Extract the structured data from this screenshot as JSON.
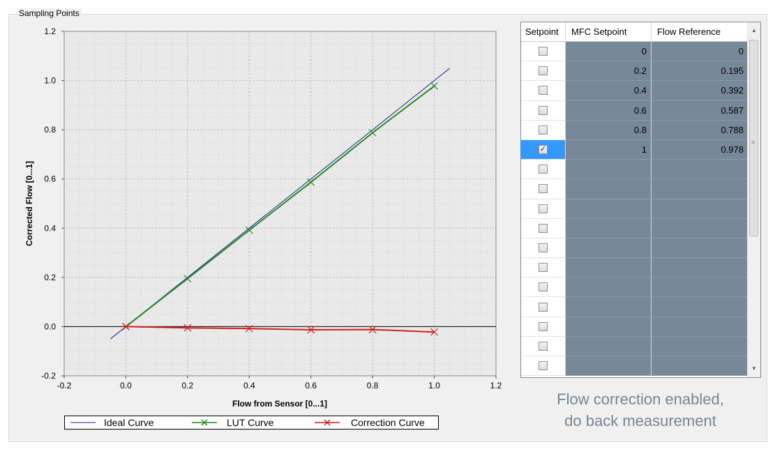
{
  "group": {
    "title": "Sampling Points"
  },
  "chart_data": {
    "type": "line",
    "xlabel": "Flow from Sensor [0...1]",
    "ylabel": "Corrected Flow [0...1]",
    "xlim": [
      -0.2,
      1.2
    ],
    "ylim": [
      -0.2,
      1.2
    ],
    "xticks": [
      "-0.2",
      "0.0",
      "0.2",
      "0.4",
      "0.6",
      "0.8",
      "1.0",
      "1.2"
    ],
    "yticks": [
      "-0.2",
      "0.0",
      "0.2",
      "0.4",
      "0.6",
      "0.8",
      "1.0",
      "1.2"
    ],
    "grid": true,
    "legend_position": "bottom",
    "series": [
      {
        "name": "Ideal Curve",
        "color": "#1c1c8c",
        "marker": "none",
        "x": [
          -0.05,
          1.05
        ],
        "y": [
          -0.05,
          1.05
        ]
      },
      {
        "name": "LUT Curve",
        "color": "#1e8c1e",
        "marker": "x",
        "x": [
          0,
          0.2,
          0.4,
          0.6,
          0.8,
          1.0
        ],
        "y": [
          0,
          0.195,
          0.392,
          0.587,
          0.788,
          0.978
        ]
      },
      {
        "name": "Correction Curve",
        "color": "#d21e1e",
        "marker": "x",
        "x": [
          0,
          0.2,
          0.4,
          0.6,
          0.8,
          1.0
        ],
        "y": [
          0,
          -0.005,
          -0.008,
          -0.013,
          -0.012,
          -0.022
        ]
      }
    ]
  },
  "table": {
    "headers": [
      "Setpoint",
      "MFC Setpoint",
      "Flow Reference"
    ],
    "rows": [
      {
        "checked": false,
        "mfc": "0",
        "ref": "0"
      },
      {
        "checked": false,
        "mfc": "0.2",
        "ref": "0.195"
      },
      {
        "checked": false,
        "mfc": "0.4",
        "ref": "0.392"
      },
      {
        "checked": false,
        "mfc": "0.6",
        "ref": "0.587"
      },
      {
        "checked": false,
        "mfc": "0.8",
        "ref": "0.788"
      },
      {
        "checked": true,
        "mfc": "1",
        "ref": "0.978"
      },
      {
        "checked": false,
        "mfc": "",
        "ref": ""
      },
      {
        "checked": false,
        "mfc": "",
        "ref": ""
      },
      {
        "checked": false,
        "mfc": "",
        "ref": ""
      },
      {
        "checked": false,
        "mfc": "",
        "ref": ""
      },
      {
        "checked": false,
        "mfc": "",
        "ref": ""
      },
      {
        "checked": false,
        "mfc": "",
        "ref": ""
      },
      {
        "checked": false,
        "mfc": "",
        "ref": ""
      },
      {
        "checked": false,
        "mfc": "",
        "ref": ""
      },
      {
        "checked": false,
        "mfc": "",
        "ref": ""
      },
      {
        "checked": false,
        "mfc": "",
        "ref": ""
      },
      {
        "checked": false,
        "mfc": "",
        "ref": ""
      }
    ],
    "selected_row": 5
  },
  "status": {
    "line1": "Flow correction enabled,",
    "line2": "do back measurement",
    "color": "#778592"
  },
  "icons": {
    "scroll_up": "scroll-up-icon",
    "scroll_down": "scroll-down-icon",
    "checkbox": "checkbox-icon"
  }
}
